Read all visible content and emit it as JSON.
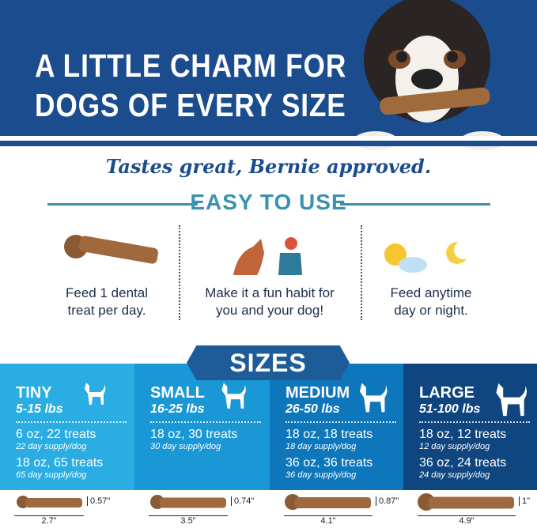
{
  "header": {
    "title_line1": "A LITTLE CHARM FOR",
    "title_line2": "DOGS OF EVERY SIZE"
  },
  "tagline": "Tastes great, Bernie approved.",
  "easy_to_use": {
    "heading": "EASY TO USE",
    "items": [
      {
        "icon": "dental-treat-icon",
        "line1": "Feed 1 dental",
        "line2": "treat per day."
      },
      {
        "icon": "girl-high-five-dog-icon",
        "line1": "Make it a fun habit for",
        "line2": "you and your dog!"
      },
      {
        "icon": "sun-moon-icon",
        "line1": "Feed anytime",
        "line2": "day or night."
      }
    ]
  },
  "sizes": {
    "heading": "SIZES",
    "panels": [
      {
        "name": "TINY",
        "range": "5-15 lbs",
        "color": "#29ade3",
        "options": [
          {
            "pack": "6 oz, 22 treats",
            "supply": "22 day supply/dog"
          },
          {
            "pack": "18 oz, 65 treats",
            "supply": "65 day supply/dog"
          }
        ],
        "height": "0.57\"",
        "length": "2.7\""
      },
      {
        "name": "SMALL",
        "range": "16-25 lbs",
        "color": "#1a98d5",
        "options": [
          {
            "pack": "18 oz, 30 treats",
            "supply": "30 day supply/dog"
          }
        ],
        "height": "0.74\"",
        "length": "3.5\""
      },
      {
        "name": "MEDIUM",
        "range": "26-50 lbs",
        "color": "#0e77bb",
        "options": [
          {
            "pack": "18 oz, 18 treats",
            "supply": "18 day supply/dog"
          },
          {
            "pack": "36 oz, 36 treats",
            "supply": "36 day supply/dog"
          }
        ],
        "height": "0.87\"",
        "length": "4.1\""
      },
      {
        "name": "LARGE",
        "range": "51-100 lbs",
        "color": "#10467f",
        "options": [
          {
            "pack": "18 oz, 12 treats",
            "supply": "12 day supply/dog"
          },
          {
            "pack": "36 oz, 24 treats",
            "supply": "24 day supply/dog"
          }
        ],
        "height": "1\"",
        "length": "4.9\""
      }
    ]
  }
}
